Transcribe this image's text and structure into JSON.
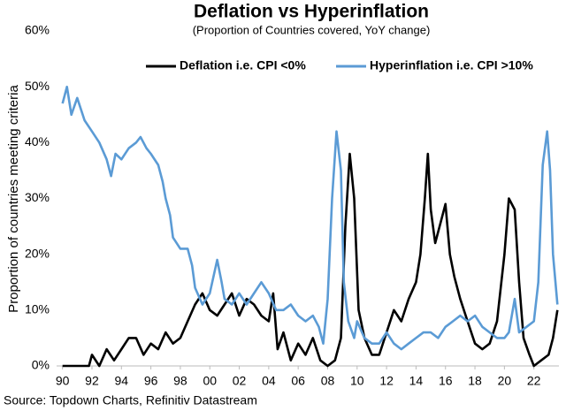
{
  "chart_data": {
    "type": "line",
    "title": "Deflation vs Hyperinflation",
    "subtitle": "(Proportion of Countries covered, YoY change)",
    "y_label": "Proportion of countries meeting criteria",
    "source": "Source: Topdown Charts, Refinitiv Datastream",
    "legend": "top",
    "grid": false,
    "xlim": [
      1989.6,
      2023.7
    ],
    "ylim": [
      0,
      60
    ],
    "xticks": [
      {
        "value": 1990,
        "label": "90"
      },
      {
        "value": 1992,
        "label": "92"
      },
      {
        "value": 1994,
        "label": "94"
      },
      {
        "value": 1996,
        "label": "96"
      },
      {
        "value": 1998,
        "label": "98"
      },
      {
        "value": 2000,
        "label": "00"
      },
      {
        "value": 2002,
        "label": "02"
      },
      {
        "value": 2004,
        "label": "04"
      },
      {
        "value": 2006,
        "label": "06"
      },
      {
        "value": 2008,
        "label": "08"
      },
      {
        "value": 2010,
        "label": "10"
      },
      {
        "value": 2012,
        "label": "12"
      },
      {
        "value": 2014,
        "label": "14"
      },
      {
        "value": 2016,
        "label": "16"
      },
      {
        "value": 2018,
        "label": "18"
      },
      {
        "value": 2020,
        "label": "20"
      },
      {
        "value": 2022,
        "label": "22"
      }
    ],
    "yticks": [
      {
        "value": 0,
        "label": "0%"
      },
      {
        "value": 10,
        "label": "10%"
      },
      {
        "value": 20,
        "label": "20%"
      },
      {
        "value": 30,
        "label": "30%"
      },
      {
        "value": 40,
        "label": "40%"
      },
      {
        "value": 50,
        "label": "50%"
      },
      {
        "value": 60,
        "label": "60%"
      }
    ],
    "series": [
      {
        "name": "Deflation i.e. CPI <0%",
        "color": "#000000",
        "x": [
          1990,
          1991,
          1991.8,
          1992,
          1992.5,
          1993,
          1993.5,
          1994,
          1994.5,
          1995,
          1995.5,
          1996,
          1996.5,
          1997,
          1997.5,
          1998,
          1998.5,
          1999,
          1999.5,
          2000,
          2000.5,
          2001,
          2001.5,
          2002,
          2002.5,
          2003,
          2003.5,
          2004,
          2004.3,
          2004.6,
          2005,
          2005.5,
          2006,
          2006.5,
          2007,
          2007.5,
          2008,
          2008.5,
          2008.9,
          2009.2,
          2009.5,
          2009.8,
          2010.1,
          2010.5,
          2011,
          2011.5,
          2012,
          2012.5,
          2013,
          2013.5,
          2014,
          2014.3,
          2014.6,
          2014.8,
          2015,
          2015.3,
          2015.6,
          2016,
          2016.3,
          2016.6,
          2017,
          2017.5,
          2018,
          2018.5,
          2019,
          2019.5,
          2020,
          2020.3,
          2020.7,
          2021,
          2021.3,
          2021.7,
          2022,
          2022.5,
          2023,
          2023.3,
          2023.6
        ],
        "values": [
          0,
          0,
          0,
          2,
          0,
          3,
          1,
          3,
          5,
          5,
          2,
          4,
          3,
          6,
          4,
          5,
          8,
          11,
          13,
          10,
          9,
          11,
          13,
          9,
          12,
          11,
          9,
          8,
          13,
          3,
          6,
          1,
          4,
          2,
          5,
          1,
          0,
          1,
          5,
          25,
          38,
          30,
          10,
          5,
          2,
          2,
          6,
          10,
          8,
          12,
          15,
          20,
          30,
          38,
          28,
          22,
          25,
          29,
          20,
          16,
          12,
          8,
          4,
          3,
          4,
          8,
          20,
          30,
          28,
          15,
          5,
          2,
          0,
          1,
          2,
          5,
          10
        ]
      },
      {
        "name": "Hyperinflation i.e. CPI >10%",
        "color": "#5b9bd5",
        "x": [
          1990,
          1990.3,
          1990.6,
          1991,
          1991.5,
          1992,
          1992.5,
          1993,
          1993.3,
          1993.6,
          1994,
          1994.5,
          1995,
          1995.3,
          1995.7,
          1996,
          1996.5,
          1996.8,
          1997,
          1997.3,
          1997.5,
          1998,
          1998.5,
          1998.8,
          1999,
          1999.5,
          2000,
          2000.5,
          2000.8,
          2001,
          2001.5,
          2002,
          2002.5,
          2003,
          2003.5,
          2004,
          2004.5,
          2005,
          2005.5,
          2006,
          2006.5,
          2007,
          2007.4,
          2007.7,
          2008,
          2008.3,
          2008.6,
          2008.9,
          2009.1,
          2009.4,
          2009.8,
          2010,
          2010.5,
          2011,
          2011.5,
          2012,
          2012.5,
          2013,
          2013.5,
          2014,
          2014.5,
          2015,
          2015.5,
          2016,
          2016.5,
          2017,
          2017.5,
          2018,
          2018.5,
          2019,
          2019.5,
          2020,
          2020.3,
          2020.7,
          2021,
          2021.5,
          2022,
          2022.3,
          2022.6,
          2022.9,
          2023.1,
          2023.3,
          2023.6
        ],
        "values": [
          47,
          50,
          45,
          48,
          44,
          42,
          40,
          37,
          34,
          38,
          37,
          39,
          40,
          41,
          39,
          38,
          36,
          33,
          30,
          27,
          23,
          21,
          21,
          18,
          14,
          11,
          13,
          19,
          15,
          12,
          11,
          13,
          11,
          13,
          15,
          13,
          10,
          10,
          11,
          9,
          8,
          9,
          7,
          4,
          12,
          30,
          42,
          35,
          15,
          8,
          5,
          8,
          5,
          4,
          4,
          6,
          4,
          3,
          4,
          5,
          6,
          6,
          5,
          7,
          8,
          9,
          8,
          9,
          7,
          6,
          5,
          5,
          6,
          12,
          6,
          7,
          8,
          15,
          36,
          42,
          35,
          20,
          11
        ]
      }
    ]
  }
}
